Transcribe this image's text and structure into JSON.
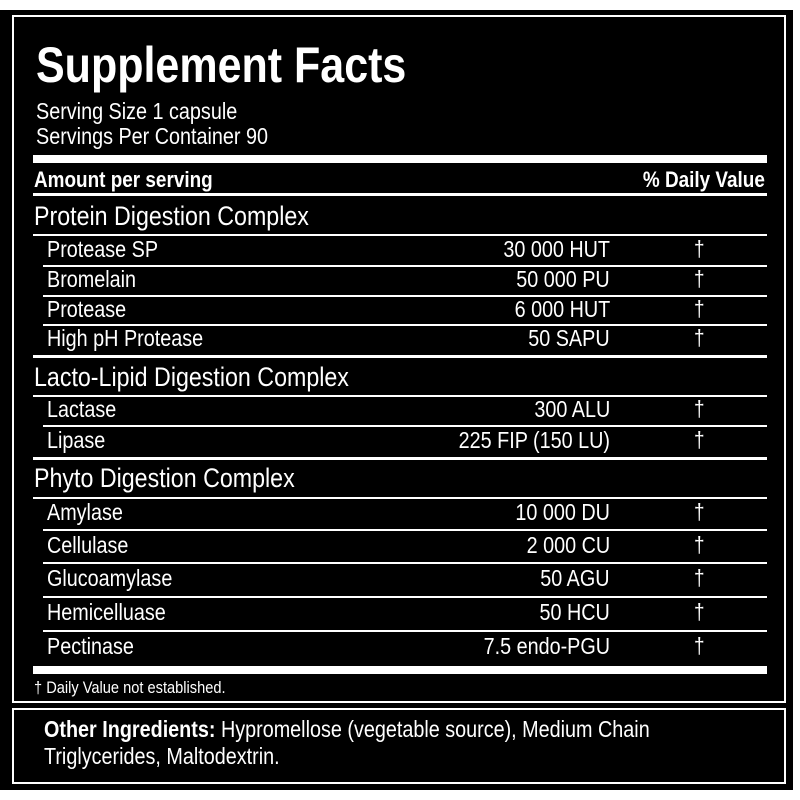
{
  "title": "Supplement Facts",
  "serving_size": "Serving Size 1 capsule",
  "servings_per_container": "Servings Per Container 90",
  "header": {
    "amount": "Amount per serving",
    "daily_value": "% Daily Value"
  },
  "groups": [
    {
      "name": "Protein Digestion Complex",
      "items": [
        {
          "name": "Protease SP",
          "amount": "30 000 HUT",
          "dv": "†"
        },
        {
          "name": "Bromelain",
          "amount": "50 000 PU",
          "dv": "†"
        },
        {
          "name": "Protease",
          "amount": "6 000 HUT",
          "dv": "†"
        },
        {
          "name": "High pH Protease",
          "amount": "50 SAPU",
          "dv": "†"
        }
      ]
    },
    {
      "name": "Lacto-Lipid Digestion Complex",
      "items": [
        {
          "name": "Lactase",
          "amount": "300 ALU",
          "dv": "†"
        },
        {
          "name": "Lipase",
          "amount": "225 FIP (150 LU)",
          "dv": "†"
        }
      ]
    },
    {
      "name": "Phyto Digestion Complex",
      "items": [
        {
          "name": "Amylase",
          "amount": "10 000 DU",
          "dv": "†"
        },
        {
          "name": "Cellulase",
          "amount": "2 000 CU",
          "dv": "†"
        },
        {
          "name": "Glucoamylase",
          "amount": "50 AGU",
          "dv": "†"
        },
        {
          "name": "Hemicelluase",
          "amount": "50 HCU",
          "dv": "†"
        },
        {
          "name": "Pectinase",
          "amount": "7.5 endo-PGU",
          "dv": "†"
        }
      ]
    }
  ],
  "footnote": "† Daily Value not established.",
  "other_ingredients": {
    "label": "Other Ingredients:",
    "line1": " Hypromellose (vegetable source), Medium Chain",
    "line2": "Triglycerides, Maltodextrin."
  },
  "colors": {
    "background": "#000000",
    "text": "#ffffff"
  }
}
